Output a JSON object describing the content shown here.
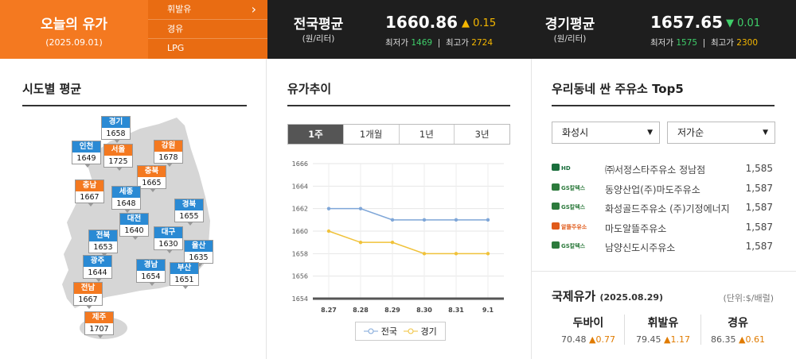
{
  "header": {
    "today_title": "오늘의 유가",
    "today_date": "(2025.09.01)",
    "fuel_menu": [
      "휘발유",
      "경유",
      "LPG"
    ],
    "national": {
      "title": "전국평균",
      "unit": "(원/리터)",
      "price": "1660.86",
      "change": "0.15",
      "direction": "up",
      "min_label": "최저가",
      "min": "1469",
      "max_label": "최고가",
      "max": "2724"
    },
    "gyeonggi": {
      "title": "경기평균",
      "unit": "(원/리터)",
      "price": "1657.65",
      "change": "0.01",
      "direction": "down",
      "min_label": "최저가",
      "min": "1575",
      "max_label": "최고가",
      "max": "2300"
    }
  },
  "regional": {
    "title": "시도별 평균",
    "regions": [
      {
        "name": "경기",
        "value": "1658",
        "color": "blue"
      },
      {
        "name": "인천",
        "value": "1649",
        "color": "blue"
      },
      {
        "name": "서울",
        "value": "1725",
        "color": "orange"
      },
      {
        "name": "강원",
        "value": "1678",
        "color": "orange"
      },
      {
        "name": "충북",
        "value": "1665",
        "color": "orange"
      },
      {
        "name": "충남",
        "value": "1667",
        "color": "orange"
      },
      {
        "name": "세종",
        "value": "1648",
        "color": "blue"
      },
      {
        "name": "경북",
        "value": "1655",
        "color": "blue"
      },
      {
        "name": "대전",
        "value": "1640",
        "color": "blue"
      },
      {
        "name": "대구",
        "value": "1630",
        "color": "blue"
      },
      {
        "name": "전북",
        "value": "1653",
        "color": "blue"
      },
      {
        "name": "울산",
        "value": "1635",
        "color": "blue"
      },
      {
        "name": "광주",
        "value": "1644",
        "color": "blue"
      },
      {
        "name": "경남",
        "value": "1654",
        "color": "blue"
      },
      {
        "name": "부산",
        "value": "1651",
        "color": "blue"
      },
      {
        "name": "전남",
        "value": "1667",
        "color": "orange"
      },
      {
        "name": "제주",
        "value": "1707",
        "color": "orange"
      }
    ]
  },
  "trend": {
    "title": "유가추이",
    "tabs": [
      "1주",
      "1개월",
      "1년",
      "3년"
    ],
    "active_tab": "1주"
  },
  "chart_data": {
    "type": "line",
    "categories": [
      "8.27",
      "8.28",
      "8.29",
      "8.30",
      "8.31",
      "9.1"
    ],
    "series": [
      {
        "name": "전국",
        "values": [
          1662,
          1662,
          1661,
          1661,
          1661,
          1661
        ],
        "color": "#7ea6d8"
      },
      {
        "name": "경기",
        "values": [
          1660,
          1659,
          1659,
          1658,
          1658,
          1658
        ],
        "color": "#f0c23a"
      }
    ],
    "yticks": [
      1654,
      1656,
      1658,
      1660,
      1662,
      1664,
      1666
    ],
    "ylim": [
      1654,
      1666
    ],
    "grid": true,
    "legend": "bottom"
  },
  "top5": {
    "title": "우리동네 싼 주유소 Top5",
    "region_select": "화성시",
    "sort_select": "저가순",
    "stations": [
      {
        "brand": "HD HYUNDAI OILBANK",
        "name": "㈜서정스타주유소 정남점",
        "price": "1,585"
      },
      {
        "brand": "GS칼텍스",
        "name": "동양산업(주)마도주유소",
        "price": "1,587"
      },
      {
        "brand": "GS칼텍스",
        "name": "화성골드주유소 (주)기정에너지",
        "price": "1,587"
      },
      {
        "brand": "알뜰주유소",
        "name": "마도알뜰주유소",
        "price": "1,587"
      },
      {
        "brand": "GS칼텍스",
        "name": "남양신도시주유소",
        "price": "1,587"
      }
    ]
  },
  "intl": {
    "title": "국제유가",
    "date": "(2025.08.29)",
    "unit": "(단위:$/배럴)",
    "items": [
      {
        "name": "두바이",
        "value": "70.48",
        "change": "0.77"
      },
      {
        "name": "휘발유",
        "value": "79.45",
        "change": "1.17"
      },
      {
        "name": "경유",
        "value": "86.35",
        "change": "0.61"
      }
    ]
  }
}
